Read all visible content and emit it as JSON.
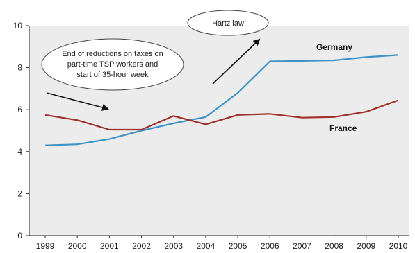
{
  "chart_data": {
    "type": "line",
    "title": "",
    "xlabel": "",
    "ylabel": "",
    "x": [
      1999,
      2000,
      2001,
      2002,
      2003,
      2004,
      2005,
      2006,
      2007,
      2008,
      2009,
      2010
    ],
    "x_tick_labels": [
      "1999",
      "2000",
      "2001",
      "2002",
      "2003",
      "2004",
      "2005",
      "2006",
      "2007",
      "2008",
      "2009",
      "2010"
    ],
    "ylim": [
      0,
      10
    ],
    "y_ticks": [
      0,
      2,
      4,
      6,
      8,
      10
    ],
    "y_tick_labels": [
      "0",
      "2",
      "4",
      "6",
      "8",
      "10"
    ],
    "grid": false,
    "plot_background": "#ececec",
    "series": [
      {
        "name": "Germany",
        "color": "#3d92c8",
        "values": [
          4.3,
          4.35,
          4.6,
          5.0,
          5.35,
          5.65,
          6.8,
          8.3,
          8.32,
          8.35,
          8.5,
          8.6
        ]
      },
      {
        "name": "France",
        "color": "#a0302a",
        "values": [
          5.75,
          5.5,
          5.05,
          5.05,
          5.7,
          5.3,
          5.75,
          5.8,
          5.62,
          5.65,
          5.9,
          6.45
        ]
      }
    ],
    "annotations": [
      {
        "id": "reductions",
        "lines": [
          "End of reductions on taxes on",
          "part-time TSP workers and",
          "start of 35-hour week"
        ]
      },
      {
        "id": "hartz",
        "lines": [
          "Hartz law"
        ]
      }
    ]
  }
}
